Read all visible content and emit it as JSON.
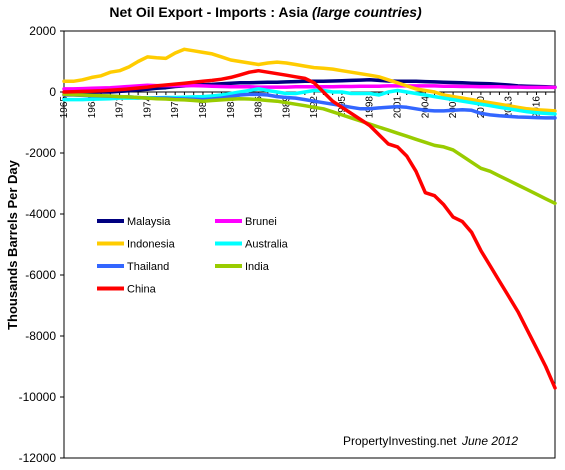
{
  "chart_data": {
    "type": "line",
    "title": "Net Oil Export - Imports : Asia",
    "title_suffix": "(large countries)",
    "xlabel": "",
    "ylabel": "Thousands Barrels Per Day",
    "xlim": [
      1965,
      2018
    ],
    "ylim": [
      -12000,
      2000
    ],
    "y_ticks": [
      2000,
      0,
      -2000,
      -4000,
      -6000,
      -8000,
      -10000,
      -12000
    ],
    "x_ticks": [
      "1965",
      "1968",
      "1971",
      "1974",
      "1977",
      "1980",
      "1983",
      "1986",
      "1989",
      "1992",
      "1995",
      "1998",
      "2001",
      "2004",
      "2007",
      "2010",
      "2013",
      "2016"
    ],
    "grid": false,
    "legend_position": "left-middle",
    "x": [
      1965,
      1966,
      1967,
      1968,
      1969,
      1970,
      1971,
      1972,
      1973,
      1974,
      1975,
      1976,
      1977,
      1978,
      1979,
      1980,
      1981,
      1982,
      1983,
      1984,
      1985,
      1986,
      1987,
      1988,
      1989,
      1990,
      1991,
      1992,
      1993,
      1994,
      1995,
      1996,
      1997,
      1998,
      1999,
      2000,
      2001,
      2002,
      2003,
      2004,
      2005,
      2006,
      2007,
      2008,
      2009,
      2010,
      2011,
      2012,
      2013,
      2014,
      2015,
      2016,
      2017,
      2018
    ],
    "series": [
      {
        "name": "Malaysia",
        "color": "#000080",
        "values": [
          -10,
          -10,
          -10,
          -5,
          0,
          0,
          20,
          40,
          70,
          90,
          120,
          140,
          180,
          200,
          230,
          240,
          250,
          270,
          290,
          300,
          300,
          310,
          320,
          320,
          330,
          340,
          350,
          350,
          350,
          360,
          370,
          380,
          390,
          400,
          380,
          360,
          350,
          350,
          350,
          340,
          330,
          320,
          310,
          300,
          290,
          280,
          270,
          250,
          230,
          200,
          190,
          180,
          170,
          160
        ]
      },
      {
        "name": "Brunei",
        "color": "#ff00ff",
        "values": [
          100,
          100,
          110,
          120,
          130,
          140,
          160,
          180,
          200,
          220,
          210,
          210,
          210,
          210,
          210,
          200,
          190,
          180,
          170,
          170,
          170,
          160,
          160,
          160,
          160,
          170,
          170,
          170,
          170,
          170,
          180,
          180,
          190,
          190,
          190,
          200,
          200,
          200,
          200,
          200,
          200,
          190,
          190,
          180,
          180,
          170,
          170,
          170,
          160,
          160,
          150,
          150,
          150,
          150
        ]
      },
      {
        "name": "Indonesia",
        "color": "#ffcc00",
        "values": [
          350,
          350,
          400,
          480,
          530,
          650,
          700,
          820,
          1000,
          1150,
          1120,
          1100,
          1280,
          1400,
          1350,
          1300,
          1250,
          1150,
          1050,
          1000,
          950,
          900,
          950,
          980,
          950,
          900,
          850,
          800,
          780,
          750,
          700,
          650,
          600,
          550,
          500,
          400,
          300,
          200,
          100,
          50,
          0,
          -100,
          -150,
          -200,
          -250,
          -300,
          -350,
          -400,
          -450,
          -500,
          -550,
          -580,
          -600,
          -620
        ]
      },
      {
        "name": "Australia",
        "color": "#00ffff",
        "values": [
          -250,
          -250,
          -250,
          -240,
          -230,
          -220,
          -200,
          -200,
          -200,
          -190,
          -190,
          -180,
          -180,
          -170,
          -160,
          -150,
          -130,
          -100,
          -50,
          0,
          50,
          100,
          50,
          0,
          -50,
          -50,
          0,
          50,
          50,
          0,
          0,
          -50,
          -50,
          -50,
          -100,
          0,
          50,
          0,
          -50,
          -100,
          -150,
          -200,
          -250,
          -300,
          -350,
          -400,
          -450,
          -500,
          -550,
          -600,
          -650,
          -680,
          -700,
          -720
        ]
      },
      {
        "name": "Thailand",
        "color": "#3366ff",
        "values": [
          -100,
          -100,
          -110,
          -120,
          -130,
          -140,
          -150,
          -160,
          -180,
          -200,
          -200,
          -200,
          -220,
          -230,
          -240,
          -250,
          -230,
          -200,
          -150,
          -100,
          -80,
          -80,
          -100,
          -150,
          -180,
          -200,
          -250,
          -300,
          -350,
          -400,
          -450,
          -500,
          -550,
          -550,
          -520,
          -500,
          -480,
          -500,
          -550,
          -600,
          -620,
          -620,
          -600,
          -580,
          -600,
          -700,
          -750,
          -780,
          -800,
          -820,
          -830,
          -840,
          -850,
          -850
        ]
      },
      {
        "name": "India",
        "color": "#99cc00",
        "values": [
          -80,
          -90,
          -100,
          -110,
          -120,
          -130,
          -150,
          -160,
          -180,
          -200,
          -220,
          -230,
          -250,
          -260,
          -280,
          -300,
          -280,
          -260,
          -240,
          -220,
          -230,
          -250,
          -280,
          -300,
          -350,
          -400,
          -450,
          -500,
          -550,
          -650,
          -750,
          -850,
          -950,
          -1050,
          -1150,
          -1250,
          -1350,
          -1450,
          -1550,
          -1650,
          -1750,
          -1800,
          -1900,
          -2100,
          -2300,
          -2500,
          -2600,
          -2750,
          -2900,
          -3050,
          -3200,
          -3350,
          -3500,
          -3650
        ]
      },
      {
        "name": "China",
        "color": "#ff0000",
        "values": [
          0,
          10,
          20,
          30,
          40,
          60,
          80,
          100,
          130,
          160,
          200,
          230,
          260,
          290,
          320,
          350,
          380,
          420,
          480,
          560,
          650,
          700,
          650,
          600,
          550,
          500,
          450,
          300,
          0,
          -300,
          -500,
          -700,
          -900,
          -1100,
          -1400,
          -1700,
          -1800,
          -2100,
          -2600,
          -3300,
          -3400,
          -3700,
          -4100,
          -4250,
          -4600,
          -5200,
          -5700,
          -6200,
          -6700,
          -7200,
          -7800,
          -8400,
          -9000,
          -9700
        ]
      }
    ],
    "credit": "PropertyInvesting.net",
    "credit_date": "June 2012"
  }
}
